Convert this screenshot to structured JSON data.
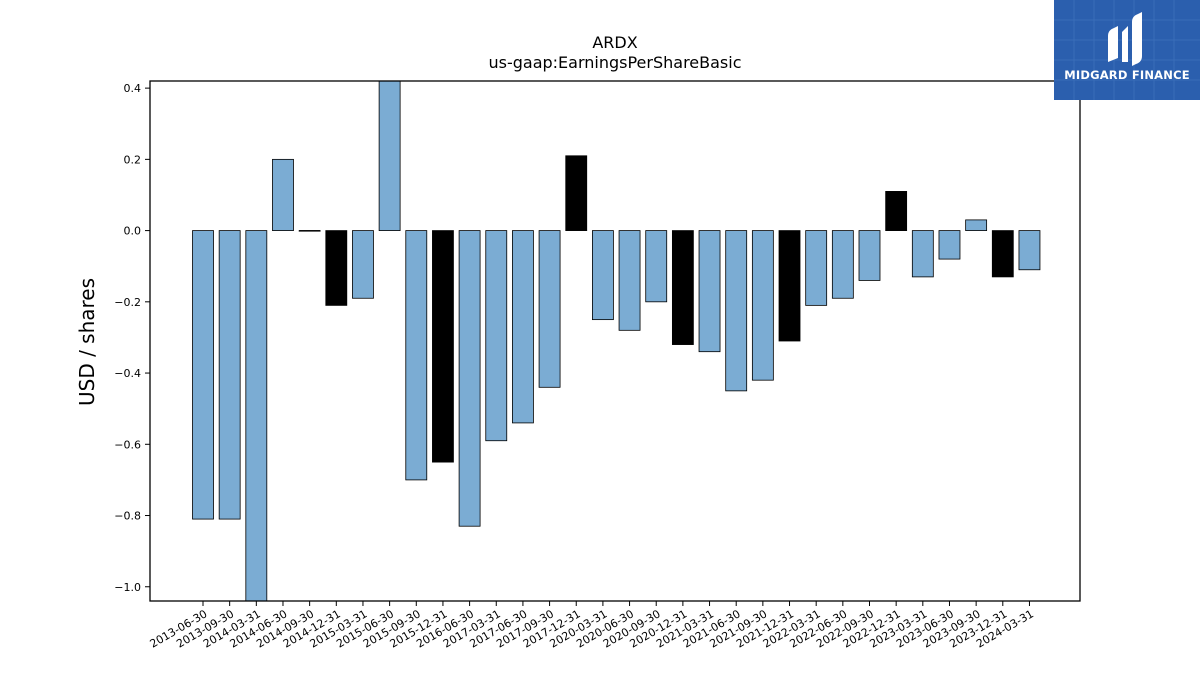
{
  "chart_data": {
    "type": "bar",
    "title": "ARDX",
    "subtitle": "us-gaap:EarningsPerShareBasic",
    "xlabel": "",
    "ylabel": "USD / shares",
    "ylim": [
      -1.04,
      0.42
    ],
    "yticks": [
      0.4,
      0.2,
      0.0,
      -0.2,
      -0.4,
      -0.6,
      -0.8,
      -1.0
    ],
    "ytick_labels": [
      "0.4",
      "0.2",
      "0.0",
      "−0.2",
      "−0.4",
      "−0.6",
      "−0.8",
      "−1.0"
    ],
    "categories": [
      "2013-06-30",
      "2013-09-30",
      "2014-03-31",
      "2014-06-30",
      "2014-09-30",
      "2014-12-31",
      "2015-03-31",
      "2015-06-30",
      "2015-09-30",
      "2015-12-31",
      "2016-06-30",
      "2017-03-31",
      "2017-06-30",
      "2017-09-30",
      "2017-12-31",
      "2020-03-31",
      "2020-06-30",
      "2020-09-30",
      "2020-12-31",
      "2021-03-31",
      "2021-06-30",
      "2021-09-30",
      "2021-12-31",
      "2022-03-31",
      "2022-06-30",
      "2022-09-30",
      "2022-12-31",
      "2023-03-31",
      "2023-06-30",
      "2023-09-30",
      "2023-12-31",
      "2024-03-31"
    ],
    "values": [
      -0.81,
      -0.81,
      -1.04,
      0.2,
      0.0,
      -0.21,
      -0.19,
      0.42,
      -0.7,
      -0.65,
      -0.83,
      -0.59,
      -0.54,
      -0.44,
      0.21,
      -0.25,
      -0.28,
      -0.2,
      -0.32,
      -0.34,
      -0.45,
      -0.42,
      -0.31,
      -0.21,
      -0.19,
      -0.14,
      0.11,
      -0.13,
      -0.08,
      0.03,
      -0.13,
      -0.11
    ],
    "annual": [
      false,
      false,
      false,
      false,
      false,
      true,
      false,
      false,
      false,
      true,
      false,
      false,
      false,
      false,
      true,
      false,
      false,
      false,
      true,
      false,
      false,
      false,
      true,
      false,
      false,
      false,
      true,
      false,
      false,
      false,
      true,
      false
    ],
    "colors": {
      "quarterly": "#7bacd3",
      "annual": "#000000",
      "edge": "#000000"
    },
    "grid": false,
    "legend": "none"
  },
  "logo": {
    "text": "MIDGARD FINANCE",
    "background": "#2b5fae"
  }
}
